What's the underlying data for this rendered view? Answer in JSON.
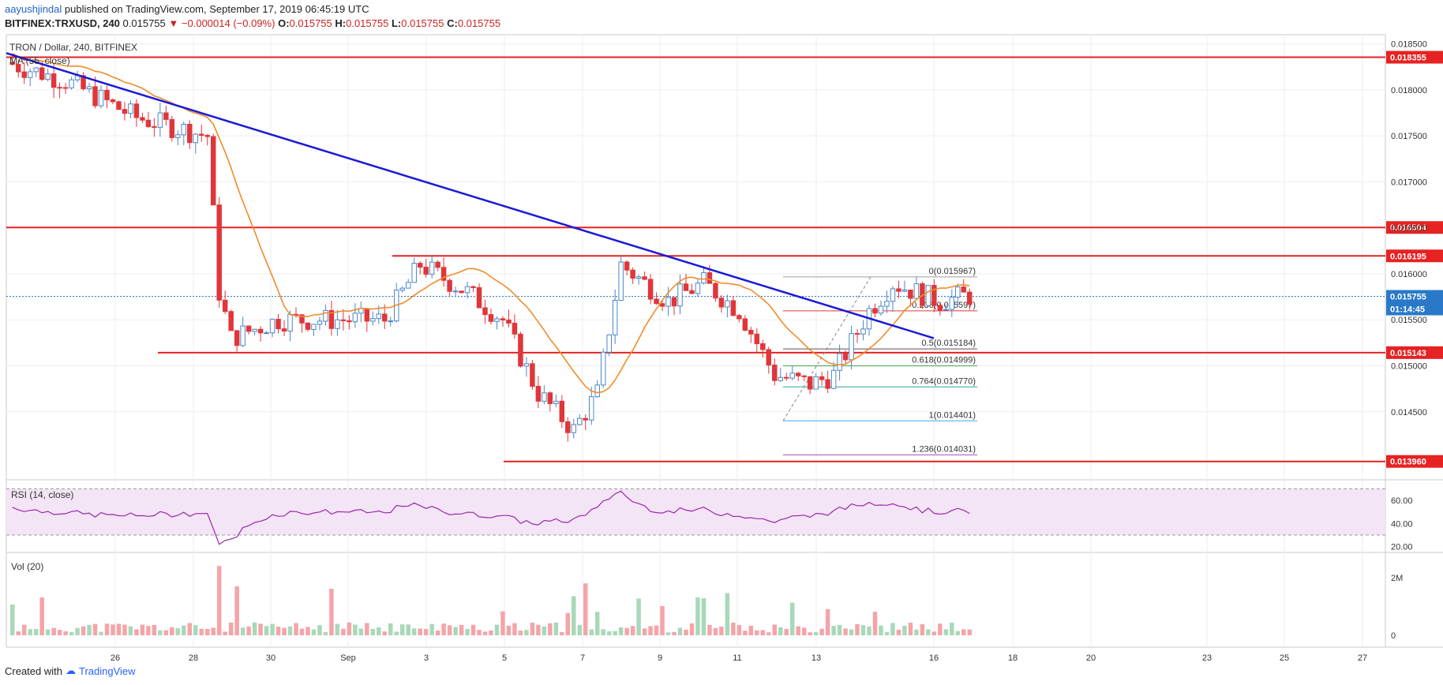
{
  "header": {
    "author": "aayushjindal",
    "published_text": "published on TradingView.com, September 17, 2019 06:45:19 UTC",
    "symbol": "BITFINEX:TRXUSD, 240",
    "last": "0.015755",
    "change": "−0.000014 (−0.09%)",
    "open_label": "O:",
    "open": "0.015755",
    "high_label": "H:",
    "high": "0.015755",
    "low_label": "L:",
    "low": "0.015755",
    "close_label": "C:",
    "close": "0.015755"
  },
  "footer": {
    "created_with": "Created with",
    "brand": "TradingView"
  },
  "chart_data": {
    "type": "candlestick",
    "title": "TRON / Dollar, 240, BITFINEX",
    "ma_label": "MA (55, close)",
    "price_axis": {
      "range": [
        0.01376,
        0.0186
      ],
      "ticks": [
        "0.018500",
        "0.018000",
        "0.017500",
        "0.017000",
        "0.016500",
        "0.016000",
        "0.015500",
        "0.015000",
        "0.014500"
      ]
    },
    "x_axis": {
      "labels": [
        "26",
        "28",
        "30",
        "Sep",
        "3",
        "5",
        "7",
        "9",
        "11",
        "13",
        "16",
        "18",
        "20",
        "23",
        "25",
        "27"
      ]
    },
    "horizontal_levels": [
      {
        "value": 0.018355,
        "label": "0.018355",
        "color": "#e62222"
      },
      {
        "value": 0.016504,
        "label": "0.016504",
        "color": "#e62222"
      },
      {
        "value": 0.016195,
        "label": "0.016195",
        "color": "#e62222"
      },
      {
        "value": 0.015143,
        "label": "0.015143",
        "color": "#e62222"
      },
      {
        "value": 0.01396,
        "label": "0.013960",
        "color": "#e62222"
      }
    ],
    "current_price": {
      "value": 0.015755,
      "label": "0.015755",
      "countdown": "01:14:45",
      "color": "#2979c8"
    },
    "fibonacci": [
      {
        "ratio": "0",
        "value": 0.015967,
        "label": "0(0.015967)",
        "color": "#9e9e9e"
      },
      {
        "ratio": "0.236",
        "value": 0.015597,
        "label": "0.236(0.015597)",
        "color": "#e53935"
      },
      {
        "ratio": "0.5",
        "value": 0.015184,
        "label": "0.5(0.015184)",
        "color": "#555555"
      },
      {
        "ratio": "0.618",
        "value": 0.014999,
        "label": "0.618(0.014999)",
        "color": "#43a047"
      },
      {
        "ratio": "0.764",
        "value": 0.01477,
        "label": "0.764(0.014770)",
        "color": "#26a69a"
      },
      {
        "ratio": "1",
        "value": 0.014401,
        "label": "1(0.014401)",
        "color": "#42a5f5"
      },
      {
        "ratio": "1.236",
        "value": 0.014031,
        "label": "1.236(0.014031)",
        "color": "#ab47bc"
      }
    ],
    "trendline": {
      "color": "#1a1ad6"
    },
    "rsi": {
      "label": "RSI (14, close)",
      "ticks": [
        "60.00",
        "40.00",
        "20.00"
      ],
      "upper": 70,
      "lower": 30,
      "color": "#9c27b0"
    },
    "volume": {
      "label": "Vol (20)",
      "ticks": [
        "2M",
        "0"
      ]
    },
    "colors": {
      "up": "#4a87c7",
      "down": "#e0363a",
      "ma": "#ef8c2b",
      "grid": "#eeeeee"
    }
  }
}
